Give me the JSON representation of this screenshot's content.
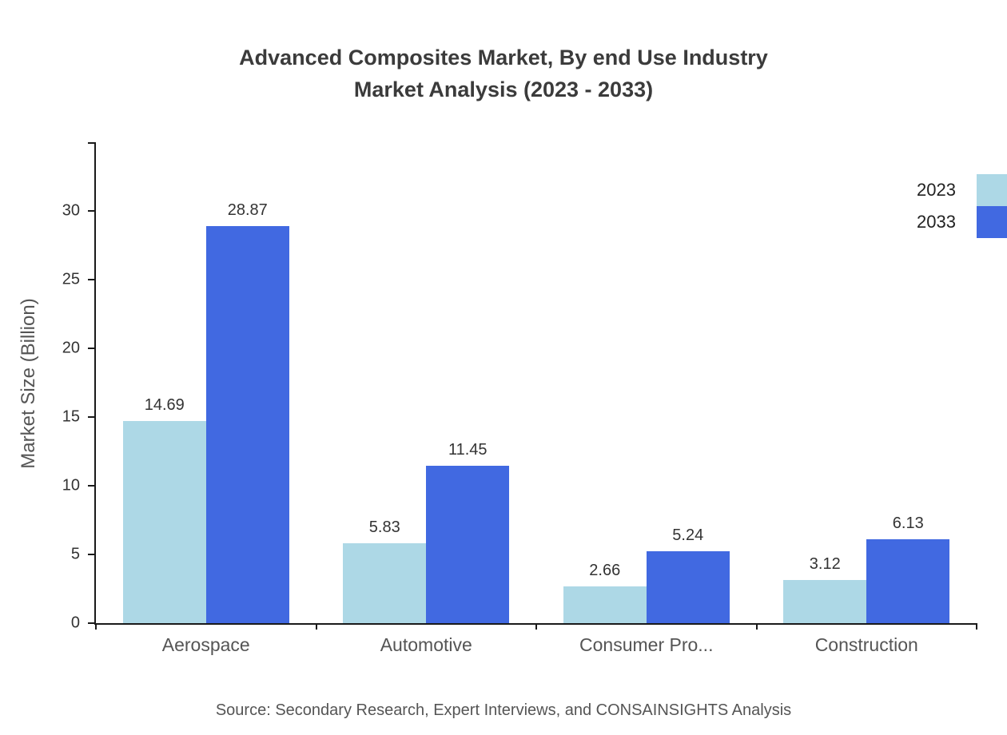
{
  "chart_data": {
    "type": "bar",
    "title": "Advanced Composites Market, By end Use Industry Market Analysis (2023 - 2033)",
    "title_lines": [
      "Advanced Composites Market, By end Use Industry",
      "Market Analysis (2023 - 2033)"
    ],
    "categories": [
      "Aerospace",
      "Automotive",
      "Consumer Pro...",
      "Construction"
    ],
    "series": [
      {
        "name": "2023",
        "color": "#add8e6",
        "values": [
          14.69,
          5.83,
          2.66,
          3.12
        ]
      },
      {
        "name": "2033",
        "color": "#4169e1",
        "values": [
          28.87,
          11.45,
          5.24,
          6.13
        ]
      }
    ],
    "xlabel": "",
    "ylabel": "Market Size (Billion)",
    "ylim": [
      0,
      35
    ],
    "yticks": [
      0,
      5,
      10,
      15,
      20,
      25,
      30
    ],
    "grid": false,
    "legend_position": "top-right",
    "axis_color": "#1a1a1a",
    "source": "Source: Secondary Research, Expert Interviews, and CONSAINSIGHTS Analysis"
  }
}
